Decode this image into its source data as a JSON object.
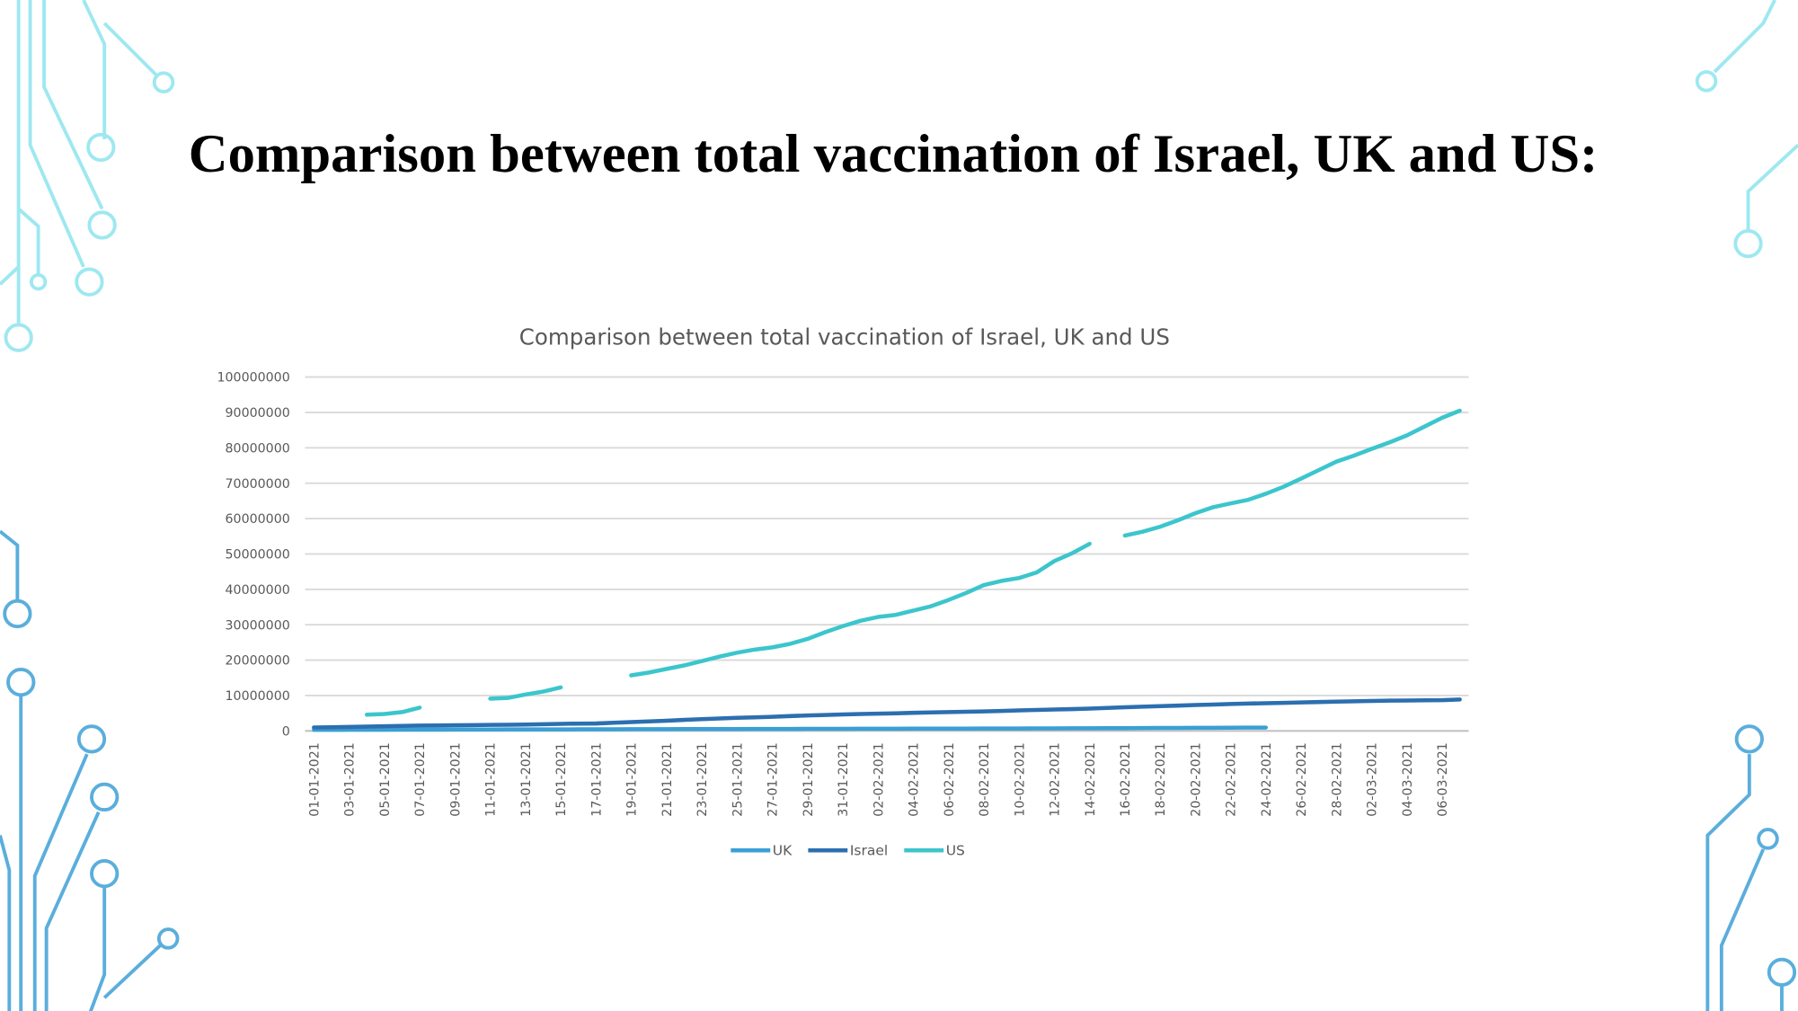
{
  "slide_title": "Comparison between total vaccination of Israel, UK and US:",
  "chart_data": {
    "type": "line",
    "title": "Comparison between total vaccination of Israel, UK and US",
    "categories": [
      "01-01-2021",
      null,
      "03-01-2021",
      null,
      "05-01-2021",
      null,
      "07-01-2021",
      null,
      "09-01-2021",
      null,
      "11-01-2021",
      null,
      "13-01-2021",
      null,
      "15-01-2021",
      null,
      "17-01-2021",
      null,
      "19-01-2021",
      null,
      "21-01-2021",
      null,
      "23-01-2021",
      null,
      "25-01-2021",
      null,
      "27-01-2021",
      null,
      "29-01-2021",
      null,
      "31-01-2021",
      null,
      "02-02-2021",
      null,
      "04-02-2021",
      null,
      "06-02-2021",
      null,
      "08-02-2021",
      null,
      "10-02-2021",
      null,
      "12-02-2021",
      null,
      "14-02-2021",
      null,
      "16-02-2021",
      null,
      "18-02-2021",
      null,
      "20-02-2021",
      null,
      "22-02-2021",
      null,
      "24-02-2021",
      null,
      "26-02-2021",
      null,
      "28-02-2021",
      null,
      "02-03-2021",
      null,
      "04-03-2021",
      null,
      "06-03-2021",
      null
    ],
    "series": [
      {
        "name": "UK",
        "color": "#3a9fd6",
        "values": [
          300000,
          310000,
          320000,
          330000,
          340000,
          350000,
          360000,
          370000,
          380000,
          390000,
          400000,
          410000,
          420000,
          430000,
          440000,
          450000,
          460000,
          470000,
          480000,
          490000,
          500000,
          510000,
          520000,
          530000,
          540000,
          550000,
          560000,
          570000,
          580000,
          590000,
          600000,
          610000,
          620000,
          630000,
          640000,
          650000,
          660000,
          670000,
          680000,
          690000,
          700000,
          710000,
          720000,
          740000,
          760000,
          780000,
          800000,
          820000,
          840000,
          860000,
          880000,
          900000,
          920000,
          940000,
          960000,
          null,
          null,
          null,
          null,
          null,
          null,
          null,
          null,
          null,
          null,
          null
        ]
      },
      {
        "name": "Israel",
        "color": "#2c6fb0",
        "values": [
          1000000,
          1050000,
          1100000,
          1200000,
          1300000,
          1400000,
          1500000,
          1550000,
          1600000,
          1650000,
          1700000,
          1750000,
          1800000,
          1900000,
          2000000,
          2050000,
          2100000,
          2300000,
          2500000,
          2700000,
          2900000,
          3100000,
          3300000,
          3500000,
          3700000,
          3850000,
          4000000,
          4200000,
          4350000,
          4500000,
          4650000,
          4800000,
          4900000,
          5000000,
          5100000,
          5200000,
          5300000,
          5400000,
          5500000,
          5650000,
          5800000,
          5950000,
          6050000,
          6150000,
          6300000,
          6500000,
          6700000,
          6850000,
          7000000,
          7150000,
          7300000,
          7450000,
          7600000,
          7750000,
          7850000,
          7950000,
          8050000,
          8150000,
          8250000,
          8350000,
          8450000,
          8550000,
          8600000,
          8650000,
          8700000,
          8900000
        ]
      },
      {
        "name": "US",
        "color": "#3cc5cc",
        "values": [
          null,
          null,
          null,
          4600000,
          4800000,
          5300000,
          6600000,
          null,
          null,
          null,
          9100000,
          9300000,
          10300000,
          11100000,
          12300000,
          null,
          null,
          null,
          15700000,
          16500000,
          17500000,
          18500000,
          19700000,
          21000000,
          22100000,
          23000000,
          23600000,
          24600000,
          26000000,
          27900000,
          29600000,
          31100000,
          32200000,
          32800000,
          34000000,
          35200000,
          37000000,
          39000000,
          41200000,
          42400000,
          43200000,
          44800000,
          48000000,
          50200000,
          52900000,
          null,
          55200000,
          56300000,
          57700000,
          59500000,
          61500000,
          63200000,
          64300000,
          65300000,
          67000000,
          69000000,
          71300000,
          73700000,
          76100000,
          77800000,
          79700000,
          81500000,
          83500000,
          86000000,
          88500000,
          90500000
        ]
      }
    ],
    "ylim": [
      0,
      100000000
    ],
    "yticks": [
      0,
      10000000,
      20000000,
      30000000,
      40000000,
      50000000,
      60000000,
      70000000,
      80000000,
      90000000,
      100000000
    ],
    "grid": true,
    "legend": "bottom"
  }
}
